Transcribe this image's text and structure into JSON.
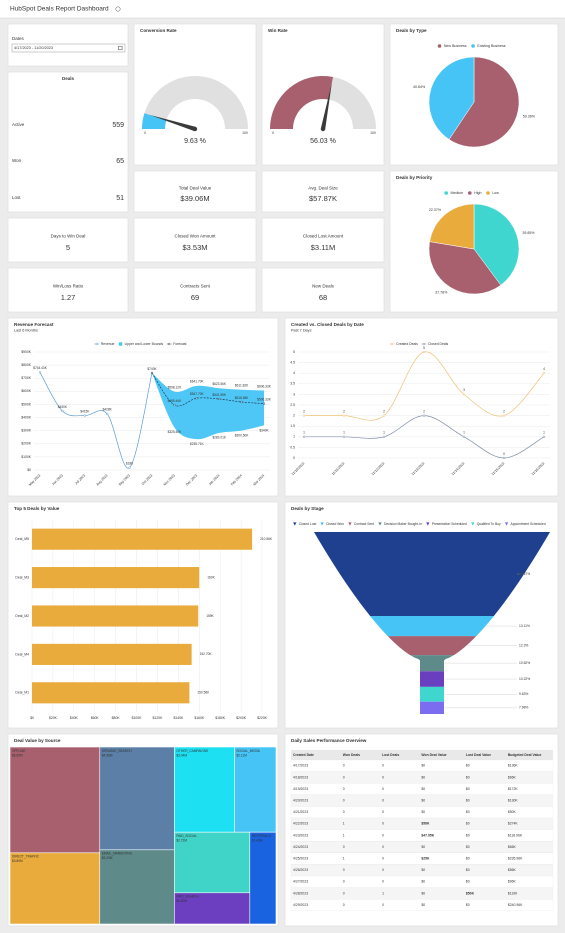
{
  "header": {
    "title": "HubSpot Deals Report Dashboard"
  },
  "dates": {
    "label": "Dates",
    "range": "4/17/2023 - 11/20/2023"
  },
  "deals": {
    "title": "Deals",
    "rows": [
      {
        "label": "Active",
        "value": 559
      },
      {
        "label": "Won",
        "value": 65
      },
      {
        "label": "Lost",
        "value": 51
      }
    ]
  },
  "kpis": [
    {
      "label": "Total Deal Value",
      "value": "$39.06M"
    },
    {
      "label": "Avg. Deal Size",
      "value": "$57.87K"
    },
    {
      "label": "Days to Win Deal",
      "value": 5
    },
    {
      "label": "Closed Won Amount",
      "value": "$3.53M"
    },
    {
      "label": "Closed Lost Amount",
      "value": "$3.11M"
    },
    {
      "label": "Win/Loss Ratio",
      "value": 1.27
    },
    {
      "label": "Contracts Sent",
      "value": 69
    },
    {
      "label": "New Deals",
      "value": 68
    }
  ],
  "chart_data": [
    {
      "type": "gauge",
      "title": "Conversion Rate",
      "value": 9.63,
      "value_label": "9.63 %",
      "ylim": [
        0,
        100
      ],
      "yticks": [
        0,
        100
      ],
      "color": "#45c4f5",
      "track_color": "#e0e0e0"
    },
    {
      "type": "gauge",
      "title": "Win Rate",
      "value": 56.03,
      "value_label": "56.03 %",
      "ylim": [
        0,
        100
      ],
      "yticks": [
        0,
        100
      ],
      "color": "#a8606f",
      "track_color": "#e0e0e0"
    },
    {
      "type": "pie",
      "title": "Deals by Type",
      "categories": [
        "New Business",
        "Existing Business"
      ],
      "values": [
        59.36,
        40.64
      ],
      "value_labels": [
        "59.36%",
        "40.64%"
      ],
      "colors": [
        "#a8606f",
        "#45c4f5"
      ],
      "legend": "top"
    },
    {
      "type": "pie",
      "title": "Deals by Priority",
      "categories": [
        "Medium",
        "High",
        "Low"
      ],
      "values": [
        39.85,
        37.78,
        22.37
      ],
      "value_labels": [
        "39.85%",
        "37.78%",
        "22.37%"
      ],
      "colors": [
        "#3ed6cf",
        "#a8606f",
        "#e8ab3c"
      ],
      "legend": "top"
    },
    {
      "type": "line",
      "title": "Revenue Forecast",
      "subtitle": "Last 6 Months",
      "categories": [
        "May 2023",
        "Jun 2023",
        "Jul 2023",
        "Aug 2023",
        "Sep 2023",
        "Oct 2023",
        "Nov 2023",
        "Dec 2023",
        "Jan 2024",
        "Feb 2024",
        "Mar 2024"
      ],
      "series": [
        {
          "name": "Revenue",
          "color": "#5b9bd5",
          "values": [
            744430,
            450000,
            415000,
            428000,
            18000,
            740000,
            null,
            null,
            null,
            null,
            null
          ],
          "value_labels": [
            "$744.43K",
            "$450K",
            "$415K",
            "$428K",
            "$18K",
            "$740K",
            null,
            null,
            null,
            null,
            null
          ]
        },
        {
          "name": "Upper and Lower Bounds",
          "color": "#45c4f5",
          "values": [
            null,
            null,
            null,
            null,
            null,
            740000,
            598120,
            641700,
            623560,
            611820,
            606330
          ],
          "value_labels": [
            null,
            null,
            null,
            null,
            null,
            null,
            "$598.12K",
            "$641.70K",
            "$623.56K",
            "$611.82K",
            "$606.33K"
          ],
          "lower": [
            null,
            null,
            null,
            null,
            null,
            740000,
            325400,
            235710,
            283010,
            300500,
            340000
          ],
          "lower_labels": [
            null,
            null,
            null,
            null,
            null,
            null,
            "$325.40K",
            "$235.71K",
            "$283.01K",
            "$300.50K",
            "$340K"
          ]
        },
        {
          "name": "Forecast",
          "color": "#1f3b57",
          "dash": true,
          "values": [
            null,
            null,
            null,
            null,
            null,
            740000,
            495440,
            547700,
            541590,
            518650,
            506330
          ],
          "value_labels": [
            null,
            null,
            null,
            null,
            null,
            null,
            "$495.44K",
            "$547.70K",
            "$541.59K",
            "$518.65K",
            "$506.33K"
          ]
        }
      ],
      "ylim": [
        0,
        900000
      ],
      "yticks": [
        {
          "value": 0,
          "label": "$0"
        },
        {
          "value": 100000,
          "label": "$100K"
        },
        {
          "value": 200000,
          "label": "$200K"
        },
        {
          "value": 300000,
          "label": "$300K"
        },
        {
          "value": 400000,
          "label": "$400K"
        },
        {
          "value": 500000,
          "label": "$500K"
        },
        {
          "value": 600000,
          "label": "$600K"
        },
        {
          "value": 700000,
          "label": "$700K"
        },
        {
          "value": 800000,
          "label": "$800K"
        },
        {
          "value": 900000,
          "label": "$900K"
        }
      ],
      "grid": true,
      "legend": "top"
    },
    {
      "type": "line",
      "title": "Created vs. Closed Deals by Date",
      "subtitle": "Past 7 Days",
      "categories": [
        "11/10/2023",
        "11/11/2023",
        "11/12/2023",
        "11/13/2023",
        "11/14/2023",
        "11/15/2023",
        "11/16/2023"
      ],
      "series": [
        {
          "name": "Created Deals",
          "color": "#f0c27a",
          "values": [
            2,
            2,
            2,
            5,
            3,
            2,
            4
          ]
        },
        {
          "name": "Closed Deals",
          "color": "#7f8fa6",
          "values": [
            1,
            1,
            1,
            2,
            1,
            0,
            1
          ]
        }
      ],
      "ylim": [
        0,
        5
      ],
      "yticks": [
        0,
        0.5,
        1,
        1.5,
        2,
        2.5,
        3,
        3.5,
        4,
        4.5,
        5
      ],
      "grid": true,
      "legend": "top"
    },
    {
      "type": "bar",
      "orientation": "horizontal",
      "title": "Top 5 Deals by Value",
      "categories": [
        "Deal_M5",
        "Deal_M3",
        "Deal_M2",
        "Deal_M4",
        "Deal_M1"
      ],
      "values": [
        210560,
        160000,
        159000,
        152700,
        150560
      ],
      "value_labels": [
        "210.56K",
        "160K",
        "159K",
        "152.70K",
        "150.56K"
      ],
      "color": "#e8ab3c",
      "xlim": [
        0,
        220000
      ],
      "xticks": [
        {
          "value": 0,
          "label": "$0"
        },
        {
          "value": 20000,
          "label": "$20K"
        },
        {
          "value": 40000,
          "label": "$40K"
        },
        {
          "value": 60000,
          "label": "$60K"
        },
        {
          "value": 80000,
          "label": "$80K"
        },
        {
          "value": 100000,
          "label": "$100K"
        },
        {
          "value": 120000,
          "label": "$120K"
        },
        {
          "value": 140000,
          "label": "$140K"
        },
        {
          "value": 160000,
          "label": "$160K"
        },
        {
          "value": 180000,
          "label": "$180K"
        },
        {
          "value": 200000,
          "label": "$200K"
        },
        {
          "value": 220000,
          "label": "$220K"
        }
      ],
      "grid": true
    },
    {
      "type": "funnel",
      "title": "Deals by Stage",
      "categories": [
        "Closed Lost",
        "Closed Won",
        "Contract Sent",
        "Decision Maker Bought-In",
        "Presentation Scheduled",
        "Qualified To Buy",
        "Appointment Scheduled"
      ],
      "values": [
        54.67,
        13.11,
        12.3,
        10.52,
        10.22,
        9.63,
        7.98
      ],
      "value_labels": [
        "54.67%",
        "13.11%",
        "12.3%",
        "10.52%",
        "10.22%",
        "9.63%",
        "7.98%"
      ],
      "colors": [
        "#1f3f8f",
        "#45c4f5",
        "#a8606f",
        "#5e8a8a",
        "#6a3fbf",
        "#3ed6cf",
        "#7b6cf0"
      ],
      "legend": "top"
    },
    {
      "type": "treemap",
      "title": "Deal Value by Source",
      "categories": [
        "OFFLINE",
        "DIRECT_TRAFFIC",
        "ORGANIC_SEARCH",
        "EMAIL_MARKETING",
        "OTHER_CAMPAIGNS",
        "SOCIAL_MEDIA",
        "PAID_SOCIAL",
        "REFERRALS",
        "PAID_SEARCH"
      ],
      "values": [
        5650000,
        3800000,
        4560000,
        3290000,
        3040000,
        2110000,
        2720000,
        1430000,
        1400000
      ],
      "value_labels": [
        "$5.65M",
        "$3.80M",
        "$4.56M",
        "$3.29M",
        "$3.04M",
        "$2.11M",
        "$2.72M",
        "$1.43M",
        "$1.40M"
      ],
      "colors": [
        "#a8606f",
        "#e8ab3c",
        "#5b7fa6",
        "#5e8a8a",
        "#1de0f2",
        "#45c4f5",
        "#40d3c8",
        "#1a63e0",
        "#6b3fbf"
      ]
    }
  ],
  "table": {
    "title": "Daily Sales Performance Overview",
    "zero_color": "#3a8fd8",
    "won_color": "#2e9e3e",
    "lost_color": "#d9342b",
    "columns": [
      "Created Date",
      "Won Deals",
      "Lost Deals",
      "Won Deal Value",
      "Lost Deal Value",
      "Budgeted Deal Value"
    ],
    "rows": [
      [
        "4/17/2023",
        0,
        0,
        "$0",
        "$0",
        "$136K"
      ],
      [
        "4/18/2023",
        0,
        0,
        "$0",
        "$0",
        "$66K"
      ],
      [
        "4/19/2023",
        0,
        0,
        "$0",
        "$0",
        "$172K"
      ],
      [
        "4/20/2023",
        0,
        0,
        "$0",
        "$0",
        "$130K"
      ],
      [
        "4/21/2023",
        0,
        0,
        "$0",
        "$0",
        "$50K"
      ],
      [
        "4/22/2023",
        1,
        0,
        "$56K",
        "$0",
        "$274K"
      ],
      [
        "4/23/2023",
        1,
        0,
        "$47.95K",
        "$0",
        "$118.96K"
      ],
      [
        "4/24/2023",
        0,
        0,
        "$0",
        "$0",
        "$66K"
      ],
      [
        "4/25/2023",
        1,
        0,
        "$25K",
        "$0",
        "$235.96K"
      ],
      [
        "4/26/2023",
        0,
        0,
        "$0",
        "$0",
        "$56K"
      ],
      [
        "4/27/2023",
        0,
        0,
        "$0",
        "$0",
        "$96K"
      ],
      [
        "4/28/2023",
        0,
        1,
        "$0",
        "$50K",
        "$119K"
      ],
      [
        "4/29/2023",
        0,
        0,
        "$0",
        "$0",
        "$240.96K"
      ]
    ]
  }
}
